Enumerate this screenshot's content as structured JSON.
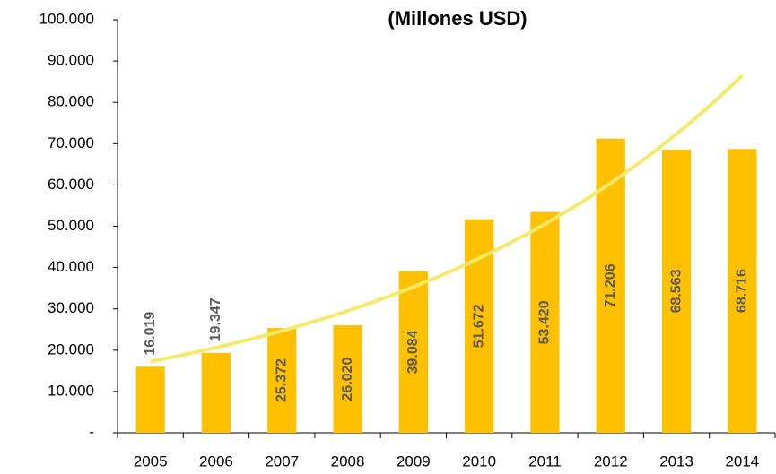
{
  "chart_data": {
    "type": "bar",
    "title": "(Millones USD)",
    "categories": [
      "2005",
      "2006",
      "2007",
      "2008",
      "2009",
      "2010",
      "2011",
      "2012",
      "2013",
      "2014"
    ],
    "values": [
      16019,
      19347,
      25372,
      26020,
      39084,
      51672,
      53420,
      71206,
      68563,
      68716
    ],
    "value_labels": [
      "16.019",
      "19.347",
      "25.372",
      "26.020",
      "39.084",
      "51.672",
      "53.420",
      "71.206",
      "68.563",
      "68.716"
    ],
    "color": "#ffc000",
    "trendline": "exponential",
    "trendline_color": "#f3e96a",
    "ylim": [
      0,
      100000
    ],
    "yticks": [
      {
        "value": 0,
        "label": "-"
      },
      {
        "value": 10000,
        "label": "10.000"
      },
      {
        "value": 20000,
        "label": "20.000"
      },
      {
        "value": 30000,
        "label": "30.000"
      },
      {
        "value": 40000,
        "label": "40.000"
      },
      {
        "value": 50000,
        "label": "50.000"
      },
      {
        "value": 60000,
        "label": "60.000"
      },
      {
        "value": 70000,
        "label": "70.000"
      },
      {
        "value": 80000,
        "label": "80.000"
      },
      {
        "value": 90000,
        "label": "90.000"
      },
      {
        "value": 100000,
        "label": "100.000"
      }
    ],
    "grid": false
  }
}
